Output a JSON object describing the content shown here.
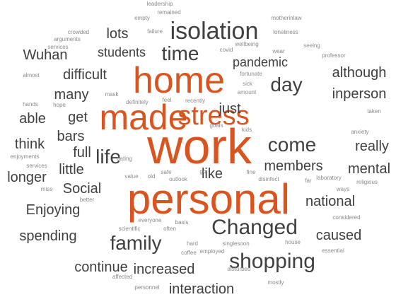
{
  "accent_color": "#d9541e",
  "dark_color": "#404040",
  "light_color": "#8a8a8a",
  "words": [
    {
      "text": "work",
      "level": "xl",
      "accent": true
    },
    {
      "text": "personal",
      "level": "xl",
      "accent": true
    },
    {
      "text": "home",
      "level": "l",
      "accent": true
    },
    {
      "text": "made",
      "level": "l",
      "accent": true
    },
    {
      "text": "stress",
      "level": "l2",
      "accent": true
    },
    {
      "text": "isolation",
      "level": "m"
    },
    {
      "text": "Changed",
      "level": "m"
    },
    {
      "text": "shopping",
      "level": "m"
    },
    {
      "text": "family",
      "level": "m"
    },
    {
      "text": "time",
      "level": "m2"
    },
    {
      "text": "day",
      "level": "m2"
    },
    {
      "text": "life",
      "level": "m2"
    },
    {
      "text": "come",
      "level": "m2"
    },
    {
      "text": "lots",
      "level": "s"
    },
    {
      "text": "students",
      "level": "s"
    },
    {
      "text": "Wuhan",
      "level": "s"
    },
    {
      "text": "pandemic",
      "level": "s"
    },
    {
      "text": "although",
      "level": "s"
    },
    {
      "text": "difficult",
      "level": "s"
    },
    {
      "text": "many",
      "level": "s"
    },
    {
      "text": "inperson",
      "level": "s"
    },
    {
      "text": "just",
      "level": "s"
    },
    {
      "text": "able",
      "level": "s"
    },
    {
      "text": "get",
      "level": "s"
    },
    {
      "text": "think",
      "level": "s"
    },
    {
      "text": "bars",
      "level": "s"
    },
    {
      "text": "really",
      "level": "s"
    },
    {
      "text": "full",
      "level": "s"
    },
    {
      "text": "mental",
      "level": "s"
    },
    {
      "text": "members",
      "level": "s"
    },
    {
      "text": "little",
      "level": "s"
    },
    {
      "text": "like",
      "level": "s"
    },
    {
      "text": "longer",
      "level": "s"
    },
    {
      "text": "Social",
      "level": "s"
    },
    {
      "text": "national",
      "level": "s"
    },
    {
      "text": "Enjoying",
      "level": "s"
    },
    {
      "text": "spending",
      "level": "s"
    },
    {
      "text": "caused",
      "level": "s"
    },
    {
      "text": "continue",
      "level": "s"
    },
    {
      "text": "increased",
      "level": "s"
    },
    {
      "text": "interaction",
      "level": "s"
    },
    {
      "text": "leadership",
      "level": "xs"
    },
    {
      "text": "remained",
      "level": "xs"
    },
    {
      "text": "empty",
      "level": "xs"
    },
    {
      "text": "motherinlaw",
      "level": "xs"
    },
    {
      "text": "crowded",
      "level": "xs"
    },
    {
      "text": "failure",
      "level": "xs"
    },
    {
      "text": "loneliness",
      "level": "xs"
    },
    {
      "text": "arguments",
      "level": "xs"
    },
    {
      "text": "wellbeing",
      "level": "xs"
    },
    {
      "text": "seeing",
      "level": "xs"
    },
    {
      "text": "services",
      "level": "xs"
    },
    {
      "text": "covid",
      "level": "xs"
    },
    {
      "text": "wear",
      "level": "xs"
    },
    {
      "text": "professor",
      "level": "xs"
    },
    {
      "text": "almost",
      "level": "xs"
    },
    {
      "text": "fortunate",
      "level": "xs"
    },
    {
      "text": "sick",
      "level": "xs"
    },
    {
      "text": "mask",
      "level": "xs"
    },
    {
      "text": "amount",
      "level": "xs"
    },
    {
      "text": "hands",
      "level": "xs"
    },
    {
      "text": "hope",
      "level": "xs"
    },
    {
      "text": "definitely",
      "level": "xs"
    },
    {
      "text": "feel",
      "level": "xs"
    },
    {
      "text": "recently",
      "level": "xs"
    },
    {
      "text": "taken",
      "level": "xs"
    },
    {
      "text": "goals",
      "level": "xs"
    },
    {
      "text": "kids",
      "level": "xs"
    },
    {
      "text": "anxiety",
      "level": "xs"
    },
    {
      "text": "enjoyments",
      "level": "xs"
    },
    {
      "text": "dating",
      "level": "xs"
    },
    {
      "text": "services",
      "level": "xs"
    },
    {
      "text": "value",
      "level": "xs"
    },
    {
      "text": "old",
      "level": "xs"
    },
    {
      "text": "safe",
      "level": "xs"
    },
    {
      "text": "go",
      "level": "xs"
    },
    {
      "text": "fine",
      "level": "xs"
    },
    {
      "text": "laboratory",
      "level": "xs"
    },
    {
      "text": "religious",
      "level": "xs"
    },
    {
      "text": "miss",
      "level": "xs"
    },
    {
      "text": "outlook",
      "level": "xs"
    },
    {
      "text": "disinfect",
      "level": "xs"
    },
    {
      "text": "far",
      "level": "xs"
    },
    {
      "text": "ways",
      "level": "xs"
    },
    {
      "text": "better",
      "level": "xs"
    },
    {
      "text": "considered",
      "level": "xs"
    },
    {
      "text": "scientific",
      "level": "xs"
    },
    {
      "text": "everyone",
      "level": "xs"
    },
    {
      "text": "basis",
      "level": "xs"
    },
    {
      "text": "often",
      "level": "xs"
    },
    {
      "text": "hard",
      "level": "xs"
    },
    {
      "text": "single",
      "level": "xs"
    },
    {
      "text": "soon",
      "level": "xs"
    },
    {
      "text": "house",
      "level": "xs"
    },
    {
      "text": "coffee",
      "level": "xs"
    },
    {
      "text": "employed",
      "level": "xs"
    },
    {
      "text": "essential",
      "level": "xs"
    },
    {
      "text": "affected",
      "level": "xs"
    },
    {
      "text": "disturbed",
      "level": "xs"
    },
    {
      "text": "personnel",
      "level": "xs"
    },
    {
      "text": "mostly",
      "level": "xs"
    }
  ]
}
